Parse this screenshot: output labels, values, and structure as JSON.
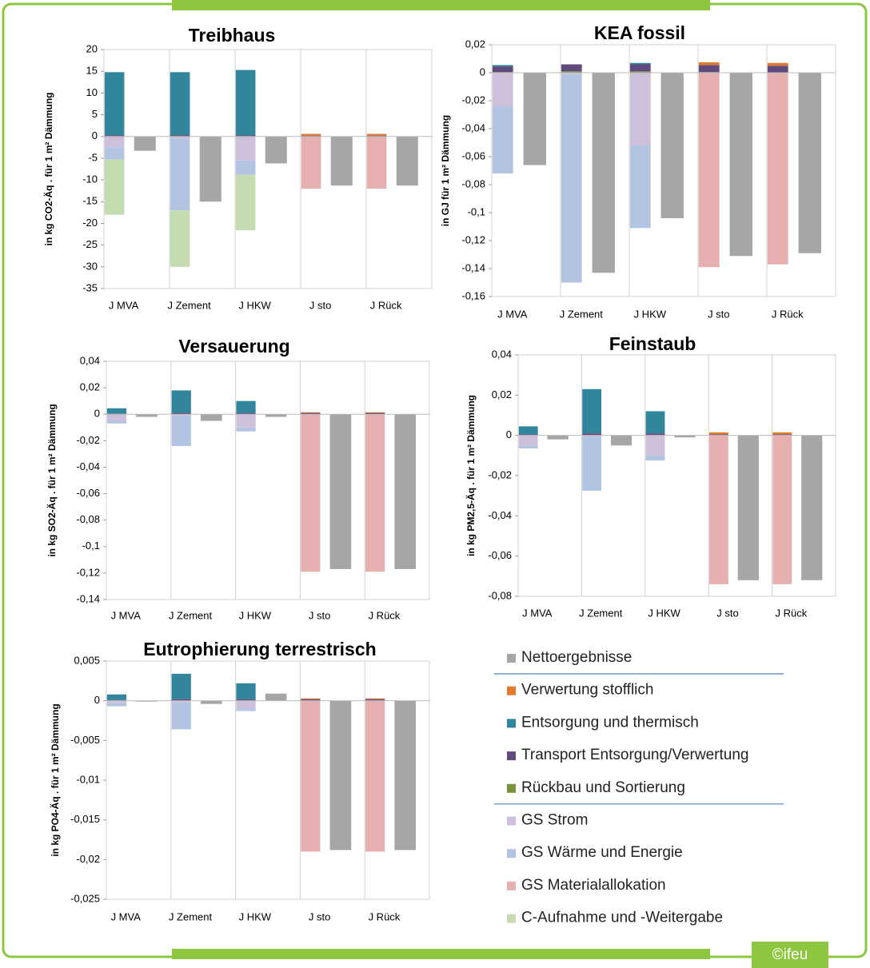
{
  "chart_data": [
    {
      "type": "bar",
      "title": "Treibhaus",
      "y_label": "in kg CO2-Äq . für 1 m² Dämmung",
      "categories": [
        "J MVA",
        "J Zement",
        "J HKW",
        "J sto",
        "J Rück"
      ],
      "ylim": [
        -35,
        20
      ],
      "yticks": [
        -35,
        -30,
        -25,
        -20,
        -15,
        -10,
        -5,
        0,
        5,
        10,
        15,
        20
      ],
      "series": [
        {
          "values": [
            -3.3,
            -15,
            -6.2,
            -11.3,
            -11.3
          ]
        },
        {
          "values": [
            0,
            0,
            0,
            0.4,
            0.4
          ]
        },
        {
          "values": [
            14.5,
            14.5,
            15,
            0,
            0
          ]
        },
        {
          "values": [
            0.3,
            0.3,
            0.3,
            0.2,
            0.2
          ]
        },
        {
          "values": [
            0,
            0,
            0,
            0,
            0
          ]
        },
        {
          "values": [
            -2.5,
            -0.5,
            -5.5,
            0,
            0
          ]
        },
        {
          "values": [
            -2.8,
            -16.5,
            -3.3,
            0,
            0
          ]
        },
        {
          "values": [
            0,
            0,
            0,
            -12,
            -12
          ]
        },
        {
          "values": [
            -12.7,
            -13,
            -12.8,
            0,
            0
          ]
        }
      ]
    },
    {
      "type": "bar",
      "title": "KEA fossil",
      "y_label": "in GJ für 1 m² Dämmung",
      "categories": [
        "J MVA",
        "J Zement",
        "J HKW",
        "J sto",
        "J Rück"
      ],
      "ylim": [
        -0.16,
        0.02
      ],
      "yticks": [
        {
          "value": -0.16,
          "label": "-0,16"
        },
        {
          "value": -0.14,
          "label": "-0,14"
        },
        {
          "value": -0.12,
          "label": "-0,12"
        },
        {
          "value": -0.1,
          "label": "-0,1"
        },
        {
          "value": -0.08,
          "label": "-0,08"
        },
        {
          "value": -0.06,
          "label": "-0,06"
        },
        {
          "value": -0.04,
          "label": "-0,04"
        },
        {
          "value": -0.02,
          "label": "-0,02"
        },
        0,
        {
          "value": 0.02,
          "label": "0,02"
        }
      ],
      "series": [
        {
          "values": [
            -0.066,
            -0.143,
            -0.104,
            -0.131,
            -0.129
          ]
        },
        {
          "values": [
            0,
            0,
            0,
            0.002,
            0.002
          ]
        },
        {
          "values": [
            0.001,
            0,
            0.001,
            0,
            0
          ]
        },
        {
          "values": [
            0.004,
            0.005,
            0.005,
            0.005,
            0.005
          ]
        },
        {
          "values": [
            0.0005,
            0.001,
            0.001,
            0.0005,
            0
          ]
        },
        {
          "values": [
            -0.024,
            -0.001,
            -0.052,
            0,
            0
          ]
        },
        {
          "values": [
            -0.048,
            -0.149,
            -0.059,
            0,
            0
          ]
        },
        {
          "values": [
            0,
            0,
            0,
            -0.139,
            -0.137
          ]
        },
        {
          "values": [
            0,
            0,
            0,
            0,
            0
          ]
        }
      ]
    },
    {
      "type": "bar",
      "title": "Versauerung",
      "y_label": "in kg SO2-Äq . für 1 m² Dämmung",
      "categories": [
        "J MVA",
        "J Zement",
        "J HKW",
        "J sto",
        "J Rück"
      ],
      "ylim": [
        -0.14,
        0.04
      ],
      "yticks": [
        {
          "value": -0.14,
          "label": "-0,14"
        },
        {
          "value": -0.12,
          "label": "-0,12"
        },
        {
          "value": -0.1,
          "label": "-0,1"
        },
        {
          "value": -0.08,
          "label": "-0,08"
        },
        {
          "value": -0.06,
          "label": "-0,06"
        },
        {
          "value": -0.04,
          "label": "-0,04"
        },
        {
          "value": -0.02,
          "label": "-0,02"
        },
        0,
        {
          "value": 0.02,
          "label": "0,02"
        },
        {
          "value": 0.04,
          "label": "0,04"
        }
      ],
      "series": [
        {
          "values": [
            -0.002,
            -0.005,
            -0.002,
            -0.117,
            -0.117
          ]
        },
        {
          "values": [
            0,
            0,
            0,
            0.0005,
            0.0005
          ]
        },
        {
          "values": [
            0.004,
            0.017,
            0.009,
            0,
            0
          ]
        },
        {
          "values": [
            0.0005,
            0.001,
            0.001,
            0.001,
            0.001
          ]
        },
        {
          "values": [
            0,
            0,
            0,
            0,
            0
          ]
        },
        {
          "values": [
            -0.005,
            -0.001,
            -0.01,
            0,
            0
          ]
        },
        {
          "values": [
            -0.002,
            -0.023,
            -0.003,
            0,
            0
          ]
        },
        {
          "values": [
            0,
            0,
            0,
            -0.119,
            -0.119
          ]
        },
        {
          "values": [
            0,
            0,
            0,
            0,
            0
          ]
        }
      ]
    },
    {
      "type": "bar",
      "title": "Feinstaub",
      "y_label": "in kg PM2,5-Äq . für 1 m² Dämmung",
      "categories": [
        "J MVA",
        "J Zement",
        "J HKW",
        "J sto",
        "J Rück"
      ],
      "ylim": [
        -0.08,
        0.04
      ],
      "yticks": [
        {
          "value": -0.08,
          "label": "-0,08"
        },
        {
          "value": -0.06,
          "label": "-0,06"
        },
        {
          "value": -0.04,
          "label": "-0,04"
        },
        {
          "value": -0.02,
          "label": "-0,02"
        },
        0,
        {
          "value": 0.02,
          "label": "0,02"
        },
        {
          "value": 0.04,
          "label": "0,04"
        }
      ],
      "series": [
        {
          "values": [
            -0.002,
            -0.005,
            -0.001,
            -0.072,
            -0.072
          ]
        },
        {
          "values": [
            0,
            0,
            0,
            0.001,
            0.001
          ]
        },
        {
          "values": [
            0.004,
            0.022,
            0.011,
            0,
            0
          ]
        },
        {
          "values": [
            0.0005,
            0.001,
            0.001,
            0.0005,
            0.0005
          ]
        },
        {
          "values": [
            0,
            0,
            0,
            0,
            0
          ]
        },
        {
          "values": [
            -0.005,
            -0.0005,
            -0.01,
            0,
            0
          ]
        },
        {
          "values": [
            -0.0015,
            -0.027,
            -0.0025,
            0,
            0
          ]
        },
        {
          "values": [
            0,
            0,
            0,
            -0.074,
            -0.074
          ]
        },
        {
          "values": [
            0,
            0,
            0,
            0,
            0
          ]
        }
      ]
    },
    {
      "type": "bar",
      "title": "Eutrophierung terrestrisch",
      "y_label": "in kg PO4-Äq . für 1 m² Dämmung",
      "categories": [
        "J MVA",
        "J Zement",
        "J HKW",
        "J sto",
        "J Rück"
      ],
      "ylim": [
        -0.025,
        0.005
      ],
      "yticks": [
        {
          "value": -0.025,
          "label": "-0,025"
        },
        {
          "value": -0.02,
          "label": "-0,02"
        },
        {
          "value": -0.015,
          "label": "-0,015"
        },
        {
          "value": -0.01,
          "label": "-0,01"
        },
        {
          "value": -0.005,
          "label": "-0,005"
        },
        0,
        {
          "value": 0.005,
          "label": "0,005"
        }
      ],
      "series": [
        {
          "values": [
            -0.0001,
            -0.0004,
            0.0009,
            -0.0188,
            -0.0188
          ]
        },
        {
          "values": [
            0,
            0,
            0,
            0.0001,
            0.0001
          ]
        },
        {
          "values": [
            0.0007,
            0.0032,
            0.002,
            0,
            0
          ]
        },
        {
          "values": [
            0.0001,
            0.0002,
            0.0002,
            0.0002,
            0.0002
          ]
        },
        {
          "values": [
            0,
            0,
            0,
            0,
            0
          ]
        },
        {
          "values": [
            -0.0003,
            -0.0002,
            -0.001,
            0,
            0
          ]
        },
        {
          "values": [
            -0.0004,
            -0.0034,
            -0.0003,
            0,
            0
          ]
        },
        {
          "values": [
            0,
            0,
            0,
            -0.019,
            -0.019
          ]
        },
        {
          "values": [
            0,
            0,
            0,
            0,
            0
          ]
        }
      ]
    }
  ],
  "legend": [
    {
      "name": "Nettoergebnisse",
      "color": "#a6a6a6"
    },
    {
      "name": "Verwertung stofflich",
      "color": "#e07b2e"
    },
    {
      "name": "Entsorgung und thermisch",
      "color": "#31869b"
    },
    {
      "name": "Transport Entsorgung/Verwertung",
      "color": "#604a7b"
    },
    {
      "name": "Rückbau und Sortierung",
      "color": "#77933c"
    },
    {
      "name": "GS Strom",
      "color": "#ccc0da"
    },
    {
      "name": "GS Wärme und Energie",
      "color": "#b3c4e2"
    },
    {
      "name": "GS Materialallokation",
      "color": "#e6b0b0"
    },
    {
      "name": "C-Aufnahme und -Weitergabe",
      "color": "#c4dcb0"
    }
  ],
  "credit": "©ifeu"
}
